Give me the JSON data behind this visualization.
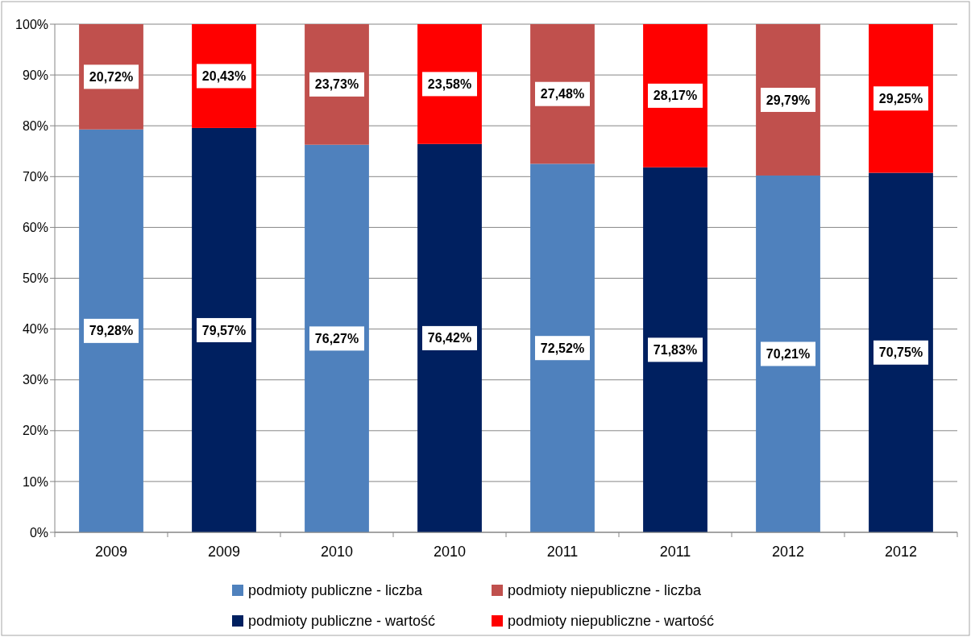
{
  "chart_data": {
    "type": "bar",
    "stacked": true,
    "categories": [
      "2009",
      "2009",
      "2010",
      "2010",
      "2011",
      "2011",
      "2012",
      "2012"
    ],
    "series": [
      {
        "name": "podmioty publiczne - liczba",
        "color": "#4f81bd",
        "values": [
          79.28,
          null,
          76.27,
          null,
          72.52,
          null,
          70.21,
          null
        ],
        "value_labels": [
          "79,28%",
          null,
          "76,27%",
          null,
          "72,52%",
          null,
          "70,21%",
          null
        ]
      },
      {
        "name": "podmioty niepubliczne - liczba",
        "color": "#c0504d",
        "values": [
          20.72,
          null,
          23.73,
          null,
          27.48,
          null,
          29.79,
          null
        ],
        "value_labels": [
          "20,72%",
          null,
          "23,73%",
          null,
          "27,48%",
          null,
          "29,79%",
          null
        ]
      },
      {
        "name": "podmioty publiczne - wartość",
        "color": "#002060",
        "values": [
          null,
          79.57,
          null,
          76.42,
          null,
          71.83,
          null,
          70.75
        ],
        "value_labels": [
          null,
          "79,57%",
          null,
          "76,42%",
          null,
          "71,83%",
          null,
          "70,75%"
        ]
      },
      {
        "name": "podmioty niepubliczne - wartość",
        "color": "#ff0000",
        "values": [
          null,
          20.43,
          null,
          23.58,
          null,
          28.17,
          null,
          29.25
        ],
        "value_labels": [
          null,
          "20,43%",
          null,
          "23,58%",
          null,
          "28,17%",
          null,
          "29,25%"
        ]
      }
    ],
    "ylim": [
      0,
      100
    ],
    "yticks": [
      {
        "value": 0,
        "label": "0%"
      },
      {
        "value": 10,
        "label": "10%"
      },
      {
        "value": 20,
        "label": "20%"
      },
      {
        "value": 30,
        "label": "30%"
      },
      {
        "value": 40,
        "label": "40%"
      },
      {
        "value": 50,
        "label": "50%"
      },
      {
        "value": 60,
        "label": "60%"
      },
      {
        "value": 70,
        "label": "70%"
      },
      {
        "value": 80,
        "label": "80%"
      },
      {
        "value": 90,
        "label": "90%"
      },
      {
        "value": 100,
        "label": "100%"
      }
    ],
    "grid": "y",
    "legend": "bottom"
  }
}
